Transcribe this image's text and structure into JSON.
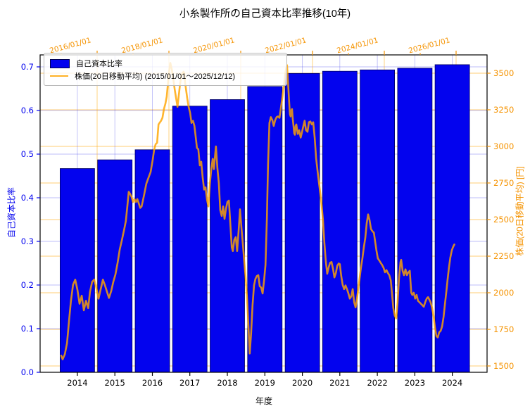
{
  "title": "小糸製作所の自己資本比率推移(10年)",
  "legend": {
    "items": [
      {
        "label": "自己資本比率",
        "swatch": "bar",
        "color": "#0303ee"
      },
      {
        "label": "株価(20日移動平均) (2015/01/01～2025/12/12)",
        "swatch": "line",
        "color": "#ffa500"
      }
    ]
  },
  "axes": {
    "left": {
      "label": "自己資本比率",
      "color": "#0000ee",
      "ticks": [
        "0.0",
        "0.1",
        "0.2",
        "0.3",
        "0.4",
        "0.5",
        "0.6",
        "0.7"
      ]
    },
    "right": {
      "label": "株価(20日移動平均) [円]",
      "color": "#f59300",
      "ticks": [
        1500,
        1750,
        2000,
        2250,
        2500,
        2750,
        3000,
        3250,
        3500
      ]
    },
    "bottom": {
      "label": "年度",
      "ticks": [
        "2014",
        "2015",
        "2016",
        "2017",
        "2018",
        "2019",
        "2020",
        "2021",
        "2022",
        "2023",
        "2024"
      ]
    },
    "top": {
      "color": "#f59300",
      "ticks": [
        {
          "value": 2016,
          "label": "2016/01/01"
        },
        {
          "value": 2018,
          "label": "2018/01/01"
        },
        {
          "value": 2020,
          "label": "2020/01/01"
        },
        {
          "value": 2022,
          "label": "2022/01/01"
        },
        {
          "value": 2024,
          "label": "2024/01/01"
        },
        {
          "value": 2026,
          "label": "2026/01/01"
        }
      ]
    }
  },
  "chart_data": [
    {
      "type": "bar",
      "name": "自己資本比率",
      "xlabel": "年度",
      "ylabel": "自己資本比率",
      "categories": [
        "2014",
        "2015",
        "2016",
        "2017",
        "2018",
        "2019",
        "2020",
        "2021",
        "2022",
        "2023",
        "2024"
      ],
      "values": [
        0.467,
        0.487,
        0.51,
        0.61,
        0.625,
        0.655,
        0.685,
        0.69,
        0.693,
        0.697,
        0.705
      ],
      "ylim": [
        0.0,
        0.727
      ],
      "grid": true,
      "legend_position": "upper-left",
      "color": "#0303ee"
    },
    {
      "type": "line",
      "name": "株価(20日移動平均)",
      "ylabel": "株価(20日移動平均) [円]",
      "date_range": [
        "2015/01/01",
        "2025/12/12"
      ],
      "ylim": [
        1455,
        3625
      ],
      "color": "#ffa500",
      "points": [
        [
          2015.0,
          1570
        ],
        [
          2015.04,
          1545
        ],
        [
          2015.1,
          1580
        ],
        [
          2015.16,
          1655
        ],
        [
          2015.22,
          1815
        ],
        [
          2015.27,
          1945
        ],
        [
          2015.33,
          2055
        ],
        [
          2015.39,
          2090
        ],
        [
          2015.45,
          2020
        ],
        [
          2015.51,
          1925
        ],
        [
          2015.57,
          1980
        ],
        [
          2015.63,
          1880
        ],
        [
          2015.69,
          1945
        ],
        [
          2015.75,
          1895
        ],
        [
          2015.8,
          2005
        ],
        [
          2015.86,
          2075
        ],
        [
          2015.92,
          2090
        ],
        [
          2015.98,
          2030
        ],
        [
          2016.04,
          1960
        ],
        [
          2016.1,
          2025
        ],
        [
          2016.16,
          2090
        ],
        [
          2016.22,
          2050
        ],
        [
          2016.27,
          2010
        ],
        [
          2016.33,
          1965
        ],
        [
          2016.39,
          2010
        ],
        [
          2016.45,
          2075
        ],
        [
          2016.51,
          2125
        ],
        [
          2016.57,
          2205
        ],
        [
          2016.63,
          2295
        ],
        [
          2016.69,
          2360
        ],
        [
          2016.75,
          2430
        ],
        [
          2016.8,
          2490
        ],
        [
          2016.84,
          2585
        ],
        [
          2016.88,
          2690
        ],
        [
          2016.92,
          2675
        ],
        [
          2016.96,
          2655
        ],
        [
          2017.0,
          2620
        ],
        [
          2017.04,
          2640
        ],
        [
          2017.08,
          2620
        ],
        [
          2017.12,
          2640
        ],
        [
          2017.16,
          2610
        ],
        [
          2017.2,
          2580
        ],
        [
          2017.24,
          2590
        ],
        [
          2017.27,
          2625
        ],
        [
          2017.31,
          2670
        ],
        [
          2017.37,
          2745
        ],
        [
          2017.43,
          2785
        ],
        [
          2017.49,
          2825
        ],
        [
          2017.55,
          2910
        ],
        [
          2017.59,
          2980
        ],
        [
          2017.63,
          3015
        ],
        [
          2017.67,
          3025
        ],
        [
          2017.71,
          3150
        ],
        [
          2017.75,
          3165
        ],
        [
          2017.78,
          3175
        ],
        [
          2017.82,
          3195
        ],
        [
          2017.86,
          3255
        ],
        [
          2017.9,
          3290
        ],
        [
          2017.94,
          3340
        ],
        [
          2017.98,
          3450
        ],
        [
          2018.02,
          3540
        ],
        [
          2018.04,
          3570
        ],
        [
          2018.08,
          3525
        ],
        [
          2018.12,
          3465
        ],
        [
          2018.16,
          3390
        ],
        [
          2018.2,
          3330
        ],
        [
          2018.24,
          3270
        ],
        [
          2018.27,
          3340
        ],
        [
          2018.31,
          3425
        ],
        [
          2018.35,
          3485
        ],
        [
          2018.39,
          3505
        ],
        [
          2018.41,
          3510
        ],
        [
          2018.43,
          3495
        ],
        [
          2018.45,
          3435
        ],
        [
          2018.47,
          3400
        ],
        [
          2018.51,
          3330
        ],
        [
          2018.55,
          3270
        ],
        [
          2018.59,
          3230
        ],
        [
          2018.63,
          3160
        ],
        [
          2018.67,
          3175
        ],
        [
          2018.71,
          3140
        ],
        [
          2018.75,
          3055
        ],
        [
          2018.78,
          2990
        ],
        [
          2018.82,
          2980
        ],
        [
          2018.86,
          2870
        ],
        [
          2018.9,
          2895
        ],
        [
          2018.94,
          2790
        ],
        [
          2018.98,
          2705
        ],
        [
          2019.02,
          2720
        ],
        [
          2019.06,
          2635
        ],
        [
          2019.1,
          2590
        ],
        [
          2019.14,
          2740
        ],
        [
          2019.18,
          2845
        ],
        [
          2019.22,
          2915
        ],
        [
          2019.25,
          2845
        ],
        [
          2019.29,
          2950
        ],
        [
          2019.31,
          3000
        ],
        [
          2019.35,
          2855
        ],
        [
          2019.39,
          2750
        ],
        [
          2019.43,
          2565
        ],
        [
          2019.47,
          2525
        ],
        [
          2019.51,
          2590
        ],
        [
          2019.55,
          2505
        ],
        [
          2019.59,
          2575
        ],
        [
          2019.63,
          2620
        ],
        [
          2019.67,
          2630
        ],
        [
          2019.71,
          2475
        ],
        [
          2019.75,
          2310
        ],
        [
          2019.78,
          2285
        ],
        [
          2019.82,
          2360
        ],
        [
          2019.86,
          2380
        ],
        [
          2019.9,
          2285
        ],
        [
          2019.94,
          2415
        ],
        [
          2019.98,
          2570
        ],
        [
          2020.02,
          2445
        ],
        [
          2020.06,
          2330
        ],
        [
          2020.1,
          2210
        ],
        [
          2020.14,
          2100
        ],
        [
          2020.18,
          1945
        ],
        [
          2020.22,
          1750
        ],
        [
          2020.25,
          1585
        ],
        [
          2020.29,
          1725
        ],
        [
          2020.33,
          1915
        ],
        [
          2020.37,
          2050
        ],
        [
          2020.41,
          2095
        ],
        [
          2020.45,
          2115
        ],
        [
          2020.49,
          2120
        ],
        [
          2020.53,
          2045
        ],
        [
          2020.57,
          2035
        ],
        [
          2020.61,
          1995
        ],
        [
          2020.65,
          2085
        ],
        [
          2020.69,
          2190
        ],
        [
          2020.73,
          2510
        ],
        [
          2020.76,
          2875
        ],
        [
          2020.8,
          3160
        ],
        [
          2020.84,
          3200
        ],
        [
          2020.88,
          3180
        ],
        [
          2020.92,
          3140
        ],
        [
          2020.96,
          3180
        ],
        [
          2021.0,
          3200
        ],
        [
          2021.04,
          3205
        ],
        [
          2021.08,
          3195
        ],
        [
          2021.12,
          3265
        ],
        [
          2021.16,
          3335
        ],
        [
          2021.2,
          3410
        ],
        [
          2021.24,
          3490
        ],
        [
          2021.27,
          3540
        ],
        [
          2021.29,
          3555
        ],
        [
          2021.31,
          3475
        ],
        [
          2021.33,
          3390
        ],
        [
          2021.35,
          3305
        ],
        [
          2021.37,
          3220
        ],
        [
          2021.39,
          3205
        ],
        [
          2021.41,
          3245
        ],
        [
          2021.43,
          3255
        ],
        [
          2021.45,
          3185
        ],
        [
          2021.47,
          3140
        ],
        [
          2021.49,
          3090
        ],
        [
          2021.51,
          3080
        ],
        [
          2021.53,
          3140
        ],
        [
          2021.55,
          3150
        ],
        [
          2021.59,
          3085
        ],
        [
          2021.63,
          3110
        ],
        [
          2021.67,
          3060
        ],
        [
          2021.71,
          3100
        ],
        [
          2021.75,
          3145
        ],
        [
          2021.78,
          3175
        ],
        [
          2021.82,
          3110
        ],
        [
          2021.86,
          3100
        ],
        [
          2021.9,
          3165
        ],
        [
          2021.94,
          3170
        ],
        [
          2021.98,
          3150
        ],
        [
          2022.02,
          3165
        ],
        [
          2022.06,
          3060
        ],
        [
          2022.1,
          2920
        ],
        [
          2022.14,
          2835
        ],
        [
          2022.18,
          2750
        ],
        [
          2022.22,
          2675
        ],
        [
          2022.25,
          2605
        ],
        [
          2022.29,
          2500
        ],
        [
          2022.33,
          2345
        ],
        [
          2022.37,
          2215
        ],
        [
          2022.41,
          2130
        ],
        [
          2022.45,
          2175
        ],
        [
          2022.49,
          2205
        ],
        [
          2022.53,
          2210
        ],
        [
          2022.57,
          2165
        ],
        [
          2022.61,
          2105
        ],
        [
          2022.65,
          2135
        ],
        [
          2022.69,
          2185
        ],
        [
          2022.73,
          2200
        ],
        [
          2022.76,
          2195
        ],
        [
          2022.8,
          2115
        ],
        [
          2022.84,
          2055
        ],
        [
          2022.88,
          2025
        ],
        [
          2022.92,
          2050
        ],
        [
          2022.96,
          2025
        ],
        [
          2023.0,
          1995
        ],
        [
          2023.04,
          1960
        ],
        [
          2023.08,
          1975
        ],
        [
          2023.12,
          2025
        ],
        [
          2023.16,
          1935
        ],
        [
          2023.2,
          1900
        ],
        [
          2023.24,
          1960
        ],
        [
          2023.27,
          2020
        ],
        [
          2023.31,
          2095
        ],
        [
          2023.35,
          2170
        ],
        [
          2023.39,
          2235
        ],
        [
          2023.43,
          2310
        ],
        [
          2023.47,
          2375
        ],
        [
          2023.51,
          2475
        ],
        [
          2023.55,
          2535
        ],
        [
          2023.59,
          2495
        ],
        [
          2023.63,
          2435
        ],
        [
          2023.67,
          2420
        ],
        [
          2023.71,
          2410
        ],
        [
          2023.75,
          2340
        ],
        [
          2023.78,
          2290
        ],
        [
          2023.82,
          2235
        ],
        [
          2023.86,
          2220
        ],
        [
          2023.9,
          2205
        ],
        [
          2023.94,
          2190
        ],
        [
          2023.98,
          2170
        ],
        [
          2024.02,
          2140
        ],
        [
          2024.06,
          2155
        ],
        [
          2024.1,
          2135
        ],
        [
          2024.14,
          2120
        ],
        [
          2024.18,
          2085
        ],
        [
          2024.22,
          1980
        ],
        [
          2024.25,
          1895
        ],
        [
          2024.29,
          1845
        ],
        [
          2024.33,
          1825
        ],
        [
          2024.37,
          1935
        ],
        [
          2024.41,
          2100
        ],
        [
          2024.45,
          2210
        ],
        [
          2024.47,
          2225
        ],
        [
          2024.51,
          2150
        ],
        [
          2024.55,
          2120
        ],
        [
          2024.59,
          2160
        ],
        [
          2024.63,
          2120
        ],
        [
          2024.67,
          2140
        ],
        [
          2024.71,
          2150
        ],
        [
          2024.75,
          2000
        ],
        [
          2024.78,
          1985
        ],
        [
          2024.82,
          2000
        ],
        [
          2024.86,
          1960
        ],
        [
          2024.9,
          1985
        ],
        [
          2024.94,
          1945
        ],
        [
          2024.98,
          1935
        ],
        [
          2025.02,
          1925
        ],
        [
          2025.06,
          1915
        ],
        [
          2025.1,
          1905
        ],
        [
          2025.14,
          1935
        ],
        [
          2025.18,
          1960
        ],
        [
          2025.22,
          1970
        ],
        [
          2025.25,
          1955
        ],
        [
          2025.29,
          1935
        ],
        [
          2025.33,
          1900
        ],
        [
          2025.37,
          1845
        ],
        [
          2025.41,
          1765
        ],
        [
          2025.45,
          1705
        ],
        [
          2025.49,
          1695
        ],
        [
          2025.53,
          1730
        ],
        [
          2025.57,
          1740
        ],
        [
          2025.61,
          1770
        ],
        [
          2025.65,
          1835
        ],
        [
          2025.69,
          1925
        ],
        [
          2025.73,
          2010
        ],
        [
          2025.76,
          2085
        ],
        [
          2025.8,
          2170
        ],
        [
          2025.84,
          2240
        ],
        [
          2025.88,
          2290
        ],
        [
          2025.92,
          2315
        ],
        [
          2025.95,
          2330
        ]
      ]
    }
  ]
}
